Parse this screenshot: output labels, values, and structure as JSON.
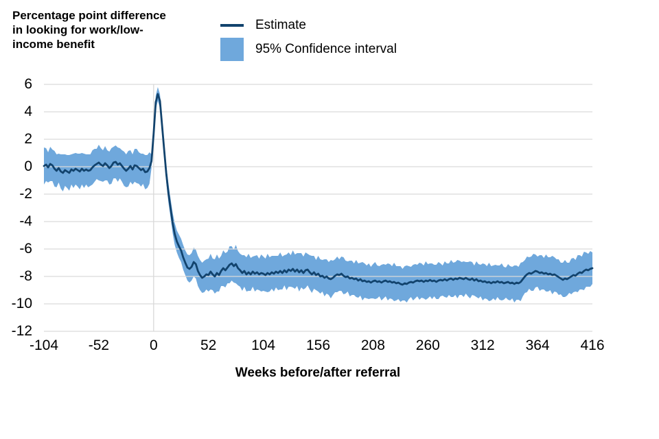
{
  "title": "Percentage point difference in looking for work/low-income benefit",
  "legend": {
    "estimate_label": "Estimate",
    "ci_label": "95% Confidence interval"
  },
  "axis": {
    "x_title": "Weeks before/after referral"
  },
  "colors": {
    "estimate": "#12436D",
    "ci_band": "#6FA8DC",
    "grid": "#D9D9D9",
    "text": "#000000",
    "background": "#FFFFFF"
  },
  "chart_data": {
    "type": "line",
    "title": "Percentage point difference in looking for work/low-income benefit",
    "xlabel": "Weeks before/after referral",
    "ylabel": "Percentage point difference in looking for work/low-income benefit",
    "xlim": [
      -104,
      416
    ],
    "ylim": [
      -12,
      6
    ],
    "xticks": [
      -104,
      -52,
      0,
      52,
      104,
      156,
      208,
      260,
      312,
      364,
      416
    ],
    "yticks": [
      6,
      4,
      2,
      0,
      -2,
      -4,
      -6,
      -8,
      -10,
      -12
    ],
    "grid": true,
    "legend_position": "top",
    "x_start": -104,
    "x_step": 2,
    "series": [
      {
        "name": "Estimate",
        "values": [
          0.05,
          0.15,
          -0.05,
          0.2,
          0.1,
          -0.15,
          -0.3,
          -0.1,
          -0.35,
          -0.45,
          -0.25,
          -0.35,
          -0.45,
          -0.2,
          -0.3,
          -0.15,
          -0.25,
          -0.35,
          -0.15,
          -0.3,
          -0.2,
          -0.3,
          -0.25,
          -0.05,
          0.1,
          0.2,
          0.3,
          0.15,
          0.05,
          0.25,
          0.1,
          -0.1,
          0.05,
          0.3,
          0.35,
          0.15,
          0.25,
          0.05,
          -0.15,
          -0.3,
          -0.15,
          0.05,
          -0.2,
          0.1,
          0.05,
          -0.1,
          -0.25,
          -0.15,
          -0.4,
          -0.35,
          -0.1,
          0.4,
          2.4,
          4.7,
          5.3,
          4.8,
          3.0,
          1.2,
          -0.5,
          -1.9,
          -3.0,
          -4.1,
          -4.9,
          -5.45,
          -5.8,
          -6.1,
          -6.6,
          -7.0,
          -7.35,
          -7.45,
          -7.3,
          -6.95,
          -7.1,
          -7.6,
          -7.9,
          -8.1,
          -8.0,
          -7.85,
          -7.9,
          -7.65,
          -7.85,
          -8.0,
          -7.75,
          -7.9,
          -7.6,
          -7.4,
          -7.55,
          -7.35,
          -7.15,
          -7.05,
          -7.25,
          -7.1,
          -7.4,
          -7.55,
          -7.75,
          -7.6,
          -7.85,
          -7.7,
          -7.85,
          -7.65,
          -7.8,
          -7.7,
          -7.85,
          -7.75,
          -7.8,
          -7.9,
          -7.75,
          -7.85,
          -7.7,
          -7.8,
          -7.65,
          -7.75,
          -7.6,
          -7.75,
          -7.55,
          -7.7,
          -7.5,
          -7.6,
          -7.45,
          -7.65,
          -7.5,
          -7.7,
          -7.55,
          -7.75,
          -7.55,
          -7.5,
          -7.7,
          -7.85,
          -7.7,
          -7.9,
          -7.8,
          -8.0,
          -7.95,
          -8.1,
          -8.0,
          -8.15,
          -8.2,
          -8.1,
          -7.95,
          -7.85,
          -7.9,
          -7.8,
          -7.95,
          -8.05,
          -8.0,
          -8.15,
          -8.1,
          -8.2,
          -8.15,
          -8.3,
          -8.2,
          -8.35,
          -8.3,
          -8.4,
          -8.35,
          -8.45,
          -8.35,
          -8.3,
          -8.4,
          -8.35,
          -8.45,
          -8.35,
          -8.3,
          -8.4,
          -8.35,
          -8.45,
          -8.4,
          -8.5,
          -8.45,
          -8.55,
          -8.6,
          -8.5,
          -8.55,
          -8.45,
          -8.4,
          -8.45,
          -8.35,
          -8.3,
          -8.35,
          -8.3,
          -8.4,
          -8.3,
          -8.35,
          -8.25,
          -8.35,
          -8.3,
          -8.4,
          -8.3,
          -8.25,
          -8.3,
          -8.2,
          -8.3,
          -8.2,
          -8.15,
          -8.25,
          -8.15,
          -8.2,
          -8.1,
          -8.15,
          -8.2,
          -8.1,
          -8.2,
          -8.25,
          -8.15,
          -8.3,
          -8.2,
          -8.35,
          -8.3,
          -8.4,
          -8.35,
          -8.45,
          -8.4,
          -8.5,
          -8.4,
          -8.45,
          -8.35,
          -8.45,
          -8.4,
          -8.5,
          -8.45,
          -8.4,
          -8.5,
          -8.45,
          -8.55,
          -8.45,
          -8.5,
          -8.4,
          -8.2,
          -8.0,
          -7.85,
          -7.75,
          -7.8,
          -7.7,
          -7.6,
          -7.65,
          -7.75,
          -7.7,
          -7.8,
          -7.75,
          -7.85,
          -7.8,
          -7.9,
          -7.85,
          -7.95,
          -8.05,
          -8.15,
          -8.25,
          -8.15,
          -8.2,
          -8.1,
          -8.0,
          -7.9,
          -7.95,
          -7.8,
          -7.7,
          -7.75,
          -7.6,
          -7.5,
          -7.55,
          -7.45,
          -7.4
        ]
      },
      {
        "name": "95% CI half-width",
        "values": [
          1.35,
          1.2,
          1.1,
          1.25,
          1.15,
          1.3,
          1.2,
          1.05,
          1.25,
          1.35,
          1.15,
          1.2,
          1.3,
          1.1,
          1.25,
          1.15,
          1.2,
          1.3,
          1.15,
          1.25,
          1.1,
          1.2,
          1.15,
          1.25,
          1.2,
          1.1,
          1.3,
          1.2,
          1.15,
          1.25,
          1.1,
          1.2,
          1.3,
          1.15,
          1.2,
          1.25,
          1.1,
          1.15,
          1.25,
          1.2,
          1.3,
          1.15,
          1.1,
          1.2,
          1.25,
          1.15,
          1.2,
          1.1,
          1.25,
          1.2,
          1.15,
          0.5,
          0.45,
          0.5,
          0.5,
          0.5,
          0.55,
          0.6,
          0.65,
          0.7,
          0.7,
          0.75,
          0.8,
          0.8,
          0.85,
          0.85,
          0.9,
          0.9,
          0.95,
          1.0,
          1.0,
          1.05,
          1.05,
          1.1,
          1.1,
          1.1,
          1.15,
          1.1,
          1.2,
          1.3,
          1.15,
          1.25,
          1.35,
          1.2,
          1.1,
          1.3,
          1.25,
          1.15,
          1.35,
          1.25,
          1.2,
          1.4,
          1.25,
          1.2,
          1.3,
          1.15,
          1.25,
          1.35,
          1.2,
          1.1,
          1.3,
          1.25,
          1.15,
          1.35,
          1.25,
          1.2,
          1.4,
          1.25,
          1.2,
          1.3,
          1.15,
          1.25,
          1.35,
          1.2,
          1.1,
          1.3,
          1.25,
          1.15,
          1.35,
          1.25,
          1.2,
          1.4,
          1.25,
          1.2,
          1.3,
          1.15,
          1.25,
          1.35,
          1.2,
          1.1,
          1.3,
          1.25,
          1.15,
          1.35,
          1.25,
          1.2,
          1.4,
          1.25,
          1.2,
          1.3,
          1.15,
          1.25,
          1.35,
          1.2,
          1.1,
          1.3,
          1.25,
          1.15,
          1.35,
          1.25,
          1.2,
          1.4,
          1.25,
          1.2,
          1.3,
          1.15,
          1.25,
          1.35,
          1.2,
          1.1,
          1.3,
          1.25,
          1.15,
          1.35,
          1.25,
          1.2,
          1.4,
          1.25,
          1.2,
          1.3,
          1.15,
          1.25,
          1.35,
          1.2,
          1.1,
          1.3,
          1.25,
          1.15,
          1.35,
          1.25,
          1.2,
          1.4,
          1.25,
          1.2,
          1.3,
          1.15,
          1.25,
          1.35,
          1.2,
          1.1,
          1.3,
          1.25,
          1.15,
          1.35,
          1.25,
          1.2,
          1.4,
          1.25,
          1.2,
          1.3,
          1.15,
          1.25,
          1.35,
          1.2,
          1.1,
          1.3,
          1.25,
          1.15,
          1.35,
          1.25,
          1.2,
          1.4,
          1.25,
          1.2,
          1.3,
          1.15,
          1.25,
          1.35,
          1.2,
          1.1,
          1.3,
          1.25,
          1.15,
          1.35,
          1.25,
          1.2,
          1.4,
          1.25,
          1.2,
          1.3,
          1.15,
          1.25,
          1.35,
          1.2,
          1.1,
          1.3,
          1.25,
          1.15,
          1.35,
          1.25,
          1.2,
          1.4,
          1.25,
          1.2,
          1.3,
          1.15,
          1.25,
          1.35,
          1.2,
          1.1,
          1.3,
          1.25,
          1.15,
          1.35,
          1.25,
          1.2,
          1.4,
          1.25,
          1.2,
          1.3,
          1.15
        ]
      }
    ]
  }
}
